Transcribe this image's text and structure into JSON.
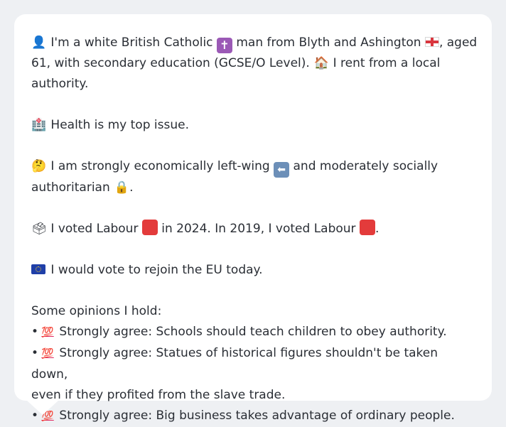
{
  "profile": {
    "intro": {
      "part1": "I'm a white British Catholic",
      "part2": "man from Blyth and Ashington",
      "part3": ", aged",
      "part4": "61, with secondary education (GCSE/O Level).",
      "part5": "I rent from a local authority."
    },
    "health": "Health is my top issue.",
    "ideology": {
      "part1": "I am strongly economically left-wing",
      "part2": "and moderately socially",
      "part3": "authoritarian",
      "part4": "."
    },
    "vote": {
      "part1": "I voted Labour",
      "part2": "in 2024. In 2019, I voted Labour",
      "part3": "."
    },
    "eu": "I would vote to rejoin the EU today.",
    "opinions_heading": "Some opinions I hold:",
    "opinions": [
      {
        "bullet": "•",
        "lines": [
          "Strongly agree: Schools should teach children to obey authority."
        ]
      },
      {
        "bullet": "•",
        "lines": [
          "Strongly agree: Statues of historical figures shouldn't be taken down,",
          "even if they profited from the slave trade."
        ]
      },
      {
        "bullet": "•",
        "lines": [
          "Strongly agree: Big business takes advantage of ordinary people."
        ]
      }
    ]
  },
  "icons": {
    "person": "👤",
    "cross": "✝",
    "house": "🏠",
    "hospital": "🏥",
    "thinking": "🤔",
    "left_arrow": "⬅",
    "lock": "🔒",
    "ballot": "🗳",
    "hundred": "💯"
  },
  "colors": {
    "labour_red": "#e33b3b",
    "eu_blue": "#1f3fa8",
    "text": "#2a2e35",
    "background": "#eef0f3",
    "card": "#ffffff"
  }
}
